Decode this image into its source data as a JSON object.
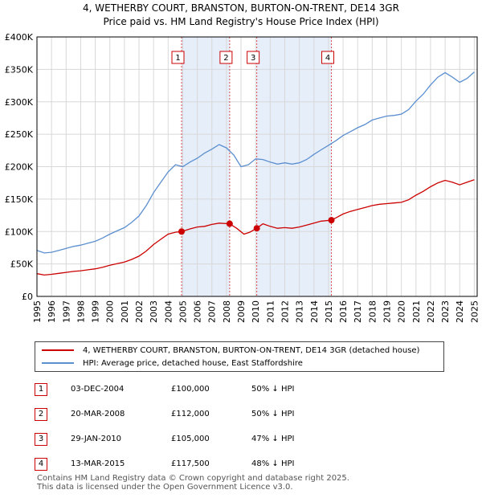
{
  "title_line1": "4, WETHERBY COURT, BRANSTON, BURTON-ON-TRENT, DE14 3GR",
  "title_line2": "Price paid vs. HM Land Registry's House Price Index (HPI)",
  "legend": {
    "property": "4, WETHERBY COURT, BRANSTON, BURTON-ON-TRENT, DE14 3GR (detached house)",
    "hpi": "HPI: Average price, detached house, East Staffordshire"
  },
  "colors": {
    "property": "#cc0000",
    "hpi": "#5b8fd0",
    "shade": "#e6eefa",
    "marker_line": "#cc0000"
  },
  "transactions": [
    {
      "num": "1",
      "date": "03-DEC-2004",
      "price": "£100,000",
      "hpi": "50% ↓ HPI"
    },
    {
      "num": "2",
      "date": "20-MAR-2008",
      "price": "£112,000",
      "hpi": "50% ↓ HPI"
    },
    {
      "num": "3",
      "date": "29-JAN-2010",
      "price": "£105,000",
      "hpi": "47% ↓ HPI"
    },
    {
      "num": "4",
      "date": "13-MAR-2015",
      "price": "£117,500",
      "hpi": "48% ↓ HPI"
    }
  ],
  "footer_line1": "Contains HM Land Registry data © Crown copyright and database right 2025.",
  "footer_line2": "This data is licensed under the Open Government Licence v3.0.",
  "chart_data": {
    "type": "line",
    "xlim": [
      1995,
      2025.2
    ],
    "ylim": [
      0,
      400000
    ],
    "y_ticks": [
      0,
      50000,
      100000,
      150000,
      200000,
      250000,
      300000,
      350000,
      400000
    ],
    "y_tick_labels": [
      "£0",
      "£50K",
      "£100K",
      "£150K",
      "£200K",
      "£250K",
      "£300K",
      "£350K",
      "£400K"
    ],
    "x_ticks": [
      1995,
      1996,
      1997,
      1998,
      1999,
      2000,
      2001,
      2002,
      2003,
      2004,
      2005,
      2006,
      2007,
      2008,
      2009,
      2010,
      2011,
      2012,
      2013,
      2014,
      2015,
      2016,
      2017,
      2018,
      2019,
      2020,
      2021,
      2022,
      2023,
      2024,
      2025
    ],
    "x_tick_labels": [
      "1995",
      "1996",
      "1997",
      "1998",
      "1999",
      "2000",
      "2001",
      "2002",
      "2003",
      "2004",
      "2005",
      "2006",
      "2007",
      "2008",
      "2009",
      "2010",
      "2011",
      "2012",
      "2013",
      "2014",
      "2015",
      "2016",
      "2017",
      "2018",
      "2019",
      "2020",
      "2021",
      "2022",
      "2023",
      "2024",
      "2025"
    ],
    "grid": true,
    "shaded_periods": [
      [
        2004.92,
        2008.22
      ],
      [
        2010.08,
        2015.2
      ]
    ],
    "sale_markers": [
      {
        "label": "1",
        "x": 2004.92,
        "y": 100000
      },
      {
        "label": "2",
        "x": 2008.22,
        "y": 112000
      },
      {
        "label": "3",
        "x": 2010.08,
        "y": 105000
      },
      {
        "label": "4",
        "x": 2015.2,
        "y": 117500
      }
    ],
    "series": [
      {
        "name": "HPI: Average price, detached house, East Staffordshire",
        "x": [
          1995,
          1995.5,
          1996,
          1996.5,
          1997,
          1997.5,
          1998,
          1998.5,
          1999,
          1999.5,
          2000,
          2000.5,
          2001,
          2001.5,
          2002,
          2002.5,
          2003,
          2003.5,
          2004,
          2004.5,
          2005,
          2005.5,
          2006,
          2006.5,
          2007,
          2007.5,
          2008,
          2008.5,
          2009,
          2009.5,
          2010,
          2010.5,
          2011,
          2011.5,
          2012,
          2012.5,
          2013,
          2013.5,
          2014,
          2014.5,
          2015,
          2015.5,
          2016,
          2016.5,
          2017,
          2017.5,
          2018,
          2018.5,
          2019,
          2019.5,
          2020,
          2020.5,
          2021,
          2021.5,
          2022,
          2022.5,
          2023,
          2023.5,
          2024,
          2024.5,
          2025
        ],
        "y": [
          71000,
          67000,
          68000,
          71000,
          74000,
          77000,
          79000,
          82000,
          85000,
          90000,
          96000,
          101000,
          106000,
          114000,
          124000,
          140000,
          160000,
          176000,
          192000,
          203000,
          200000,
          207000,
          213000,
          221000,
          227000,
          234000,
          229000,
          218000,
          200000,
          203000,
          212000,
          211000,
          207000,
          204000,
          206000,
          204000,
          206000,
          211000,
          219000,
          226000,
          233000,
          240000,
          248000,
          254000,
          260000,
          265000,
          272000,
          275000,
          278000,
          279000,
          281000,
          288000,
          301000,
          312000,
          326000,
          338000,
          345000,
          338000,
          330000,
          336000,
          346000
        ]
      },
      {
        "name": "4, WETHERBY COURT, BRANSTON, BURTON-ON-TRENT, DE14 3GR (detached house)",
        "x": [
          1995,
          1995.5,
          1996,
          1996.5,
          1997,
          1997.5,
          1998,
          1998.5,
          1999,
          1999.5,
          2000,
          2000.5,
          2001,
          2001.5,
          2002,
          2002.5,
          2003,
          2003.5,
          2004,
          2004.5,
          2004.92,
          2005.5,
          2006,
          2006.5,
          2007,
          2007.5,
          2008.22,
          2008.7,
          2009.2,
          2009.6,
          2010.08,
          2010.5,
          2011,
          2011.5,
          2012,
          2012.5,
          2013,
          2013.5,
          2014,
          2014.5,
          2015.2,
          2015.5,
          2016,
          2016.5,
          2017,
          2017.5,
          2018,
          2018.5,
          2019,
          2019.5,
          2020,
          2020.5,
          2021,
          2021.5,
          2022,
          2022.5,
          2023,
          2023.5,
          2024,
          2024.5,
          2025
        ],
        "y": [
          35000,
          33000,
          34000,
          35500,
          37000,
          38500,
          39500,
          41000,
          42500,
          45000,
          48000,
          50500,
          53000,
          57000,
          62000,
          70000,
          80000,
          88000,
          96000,
          99000,
          100000,
          104000,
          107000,
          108000,
          111000,
          113000,
          112000,
          105000,
          96000,
          99000,
          105000,
          112000,
          108000,
          105000,
          106000,
          105000,
          107000,
          110000,
          113000,
          116000,
          117500,
          121000,
          127000,
          131000,
          134000,
          137000,
          140000,
          142000,
          143000,
          144000,
          145000,
          149000,
          156000,
          162000,
          169000,
          175000,
          179000,
          176000,
          172000,
          176000,
          180000
        ]
      }
    ]
  }
}
